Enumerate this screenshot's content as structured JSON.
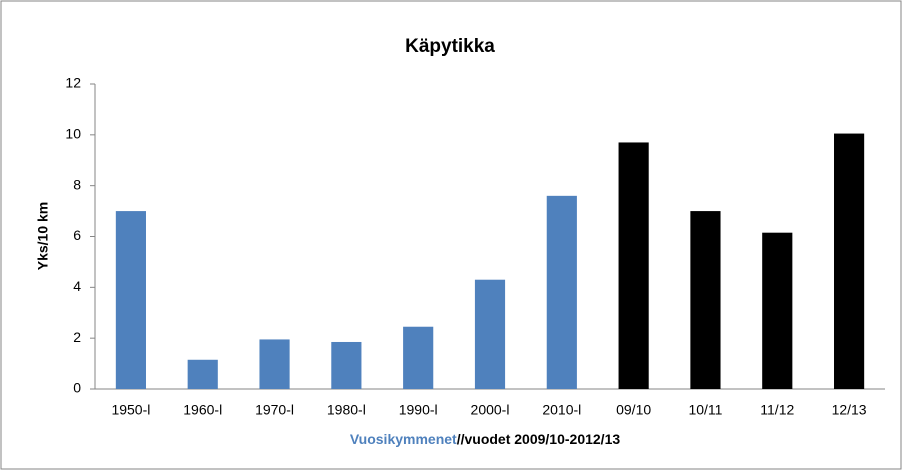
{
  "chart_data": {
    "type": "bar",
    "title": "Käpytikka",
    "y_label": "Yks/10 km",
    "x_label_parts": [
      "Vuosikymmenet",
      "//vuodet 2009/10-2012/13"
    ],
    "x_label_colors": [
      "#4f81bd",
      "#000000"
    ],
    "categories": [
      "1950-l",
      "1960-l",
      "1970-l",
      "1980-l",
      "1990-l",
      "2000-l",
      "2010-l",
      "09/10",
      "10/11",
      "11/12",
      "12/13"
    ],
    "values": [
      7.0,
      1.15,
      1.95,
      1.85,
      2.45,
      4.3,
      7.6,
      9.7,
      7.0,
      6.15,
      10.05
    ],
    "colors": [
      "#4f81bd",
      "#4f81bd",
      "#4f81bd",
      "#4f81bd",
      "#4f81bd",
      "#4f81bd",
      "#4f81bd",
      "#000000",
      "#000000",
      "#000000",
      "#000000"
    ],
    "ylim": [
      0,
      12
    ],
    "yticks": [
      0,
      2,
      4,
      6,
      8,
      10,
      12
    ],
    "grid": false
  }
}
